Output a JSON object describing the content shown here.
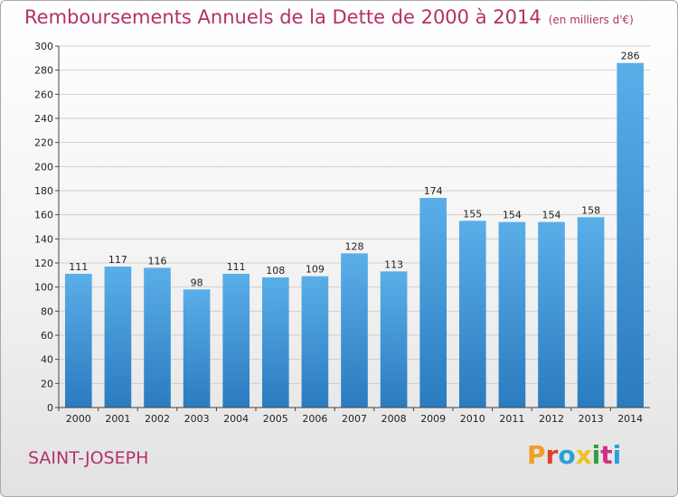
{
  "header": {
    "title": "Remboursements Annuels de la Dette de 2000 à 2014",
    "unit": "(en milliers d'€)"
  },
  "footer": {
    "city": "SAINT-JOSEPH",
    "logo": "Proxiti"
  },
  "colors": {
    "title": "#b5306a",
    "bar_top": "#5aaee8",
    "bar_bottom": "#2b7bc0",
    "grid": "#cfcfcf"
  },
  "chart_data": {
    "type": "bar",
    "title": "Remboursements Annuels de la Dette de 2000 à 2014",
    "subtitle": "(en milliers d'€)",
    "xlabel": "",
    "ylabel": "",
    "categories": [
      "2000",
      "2001",
      "2002",
      "2003",
      "2004",
      "2005",
      "2006",
      "2007",
      "2008",
      "2009",
      "2010",
      "2011",
      "2012",
      "2013",
      "2014"
    ],
    "values": [
      111,
      117,
      116,
      98,
      111,
      108,
      109,
      128,
      113,
      174,
      155,
      154,
      154,
      158,
      286
    ],
    "ylim": [
      0,
      300
    ],
    "yticks": [
      0,
      20,
      40,
      60,
      80,
      100,
      120,
      140,
      160,
      180,
      200,
      220,
      240,
      260,
      280,
      300
    ],
    "grid": true,
    "data_labels": true
  }
}
